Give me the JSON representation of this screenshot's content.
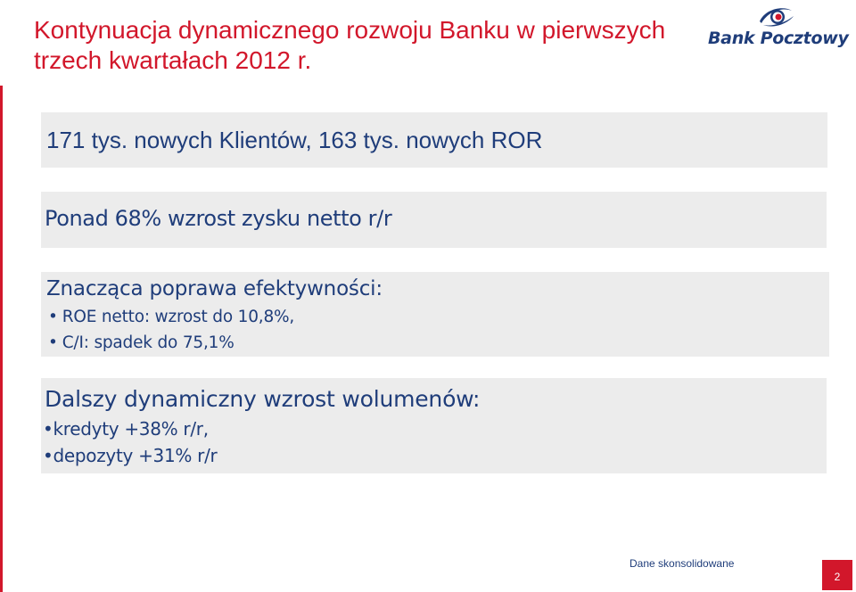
{
  "title": "Kontynuacja dynamicznego rozwoju Banku w pierwszych trzech kwartałach 2012 r.",
  "logo": {
    "text": "Bank Pocztowy",
    "icon": "bank-pocztowy-emblem",
    "colors": {
      "blue": "#1f3d7a",
      "red": "#d2172b"
    }
  },
  "points": [
    {
      "text": "171 tys. nowych Klientów, 163 tys. nowych ROR"
    },
    {
      "text": "Ponad 68% wzrost zysku netto r/r"
    },
    {
      "heading": "Znacząca poprawa efektywności:",
      "items": [
        "ROE netto: wzrost do 10,8%,",
        "C/I: spadek do 75,1%"
      ]
    },
    {
      "heading": "Dalszy dynamiczny wzrost wolumenów:",
      "items": [
        "kredyty +38% r/r,",
        "depozyty +31% r/r"
      ]
    }
  ],
  "bullet": "•",
  "footer": {
    "note": "Dane skonsolidowane",
    "page_number": "2"
  },
  "colors": {
    "accent": "#d2172b",
    "text": "#1f3d7a",
    "box_background": "#ececec"
  }
}
